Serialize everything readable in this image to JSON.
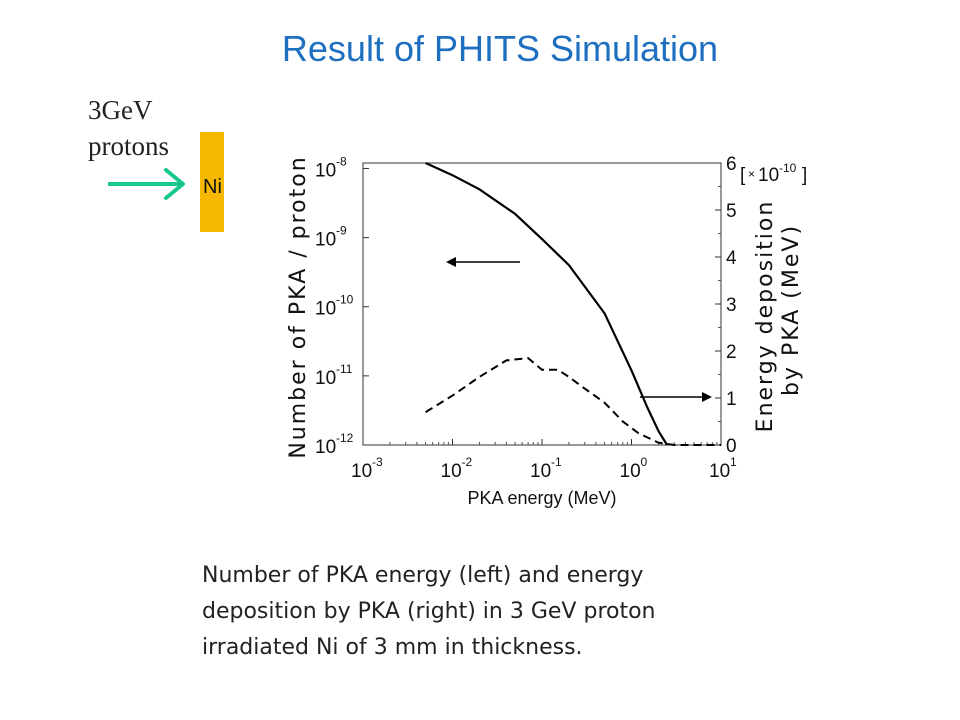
{
  "title": "Result of PHITS Simulation",
  "beam": {
    "line1": "3GeV",
    "line2": "protons",
    "target": "Ni"
  },
  "colors": {
    "title": "#1f6fc0",
    "target_bar": "#f5b700",
    "beam_arrow": "#19c890"
  },
  "caption": {
    "line1": "Number of PKA energy (left) and energy",
    "line2": "deposition by PKA (right) in 3 GeV proton",
    "line3": "irradiated Ni of 3 mm in thickness."
  },
  "chart_data": {
    "type": "line",
    "xlabel": "PKA energy (MeV)",
    "ylabel_left": "Number of PKA / proton",
    "ylabel_right_line1": "Energy deposition",
    "ylabel_right_line2": "by PKA (MeV)",
    "right_multiplier": "[×10^-10]",
    "x_scale": "log",
    "xlim": [
      0.001,
      10
    ],
    "x_ticks": [
      {
        "value": 0.001,
        "base": "10",
        "exp": "-3"
      },
      {
        "value": 0.01,
        "base": "10",
        "exp": "-2"
      },
      {
        "value": 0.1,
        "base": "10",
        "exp": "-1"
      },
      {
        "value": 1,
        "base": "10",
        "exp": "0"
      },
      {
        "value": 10,
        "base": "10",
        "exp": "1"
      }
    ],
    "y_left_scale": "log",
    "ylim_left": [
      1e-12,
      1.2e-08
    ],
    "y_left_ticks": [
      {
        "value": 1e-08,
        "base": "10",
        "exp": "-8"
      },
      {
        "value": 1e-09,
        "base": "10",
        "exp": "-9"
      },
      {
        "value": 1e-10,
        "base": "10",
        "exp": "-10"
      },
      {
        "value": 1e-11,
        "base": "10",
        "exp": "-11"
      },
      {
        "value": 1e-12,
        "base": "10",
        "exp": "-12"
      }
    ],
    "ylim_right": [
      0,
      6
    ],
    "y_right_ticks": [
      "0",
      "1",
      "2",
      "3",
      "4",
      "5",
      "6"
    ],
    "series": [
      {
        "axis": "left",
        "style": "solid",
        "x": [
          0.005,
          0.01,
          0.02,
          0.05,
          0.1,
          0.2,
          0.5,
          1.0,
          1.5,
          2.0,
          2.5
        ],
        "y": [
          1.2e-08,
          8e-09,
          5e-09,
          2.2e-09,
          9.5e-10,
          4e-10,
          8e-11,
          1.2e-11,
          3.5e-12,
          1.6e-12,
          1e-12
        ]
      },
      {
        "axis": "right",
        "style": "dashed",
        "x": [
          0.005,
          0.01,
          0.02,
          0.04,
          0.07,
          0.1,
          0.15,
          0.2,
          0.3,
          0.5,
          0.8,
          1.2,
          2.0,
          3.0,
          5.0,
          10.0
        ],
        "y": [
          0.7,
          1.05,
          1.45,
          1.8,
          1.85,
          1.6,
          1.6,
          1.45,
          1.2,
          0.9,
          0.5,
          0.25,
          0.05,
          0.0,
          0.0,
          0.0
        ]
      }
    ],
    "annotations": [
      {
        "text": "left-axis arrow",
        "direction": "left"
      },
      {
        "text": "right-axis arrow",
        "direction": "right"
      }
    ]
  }
}
